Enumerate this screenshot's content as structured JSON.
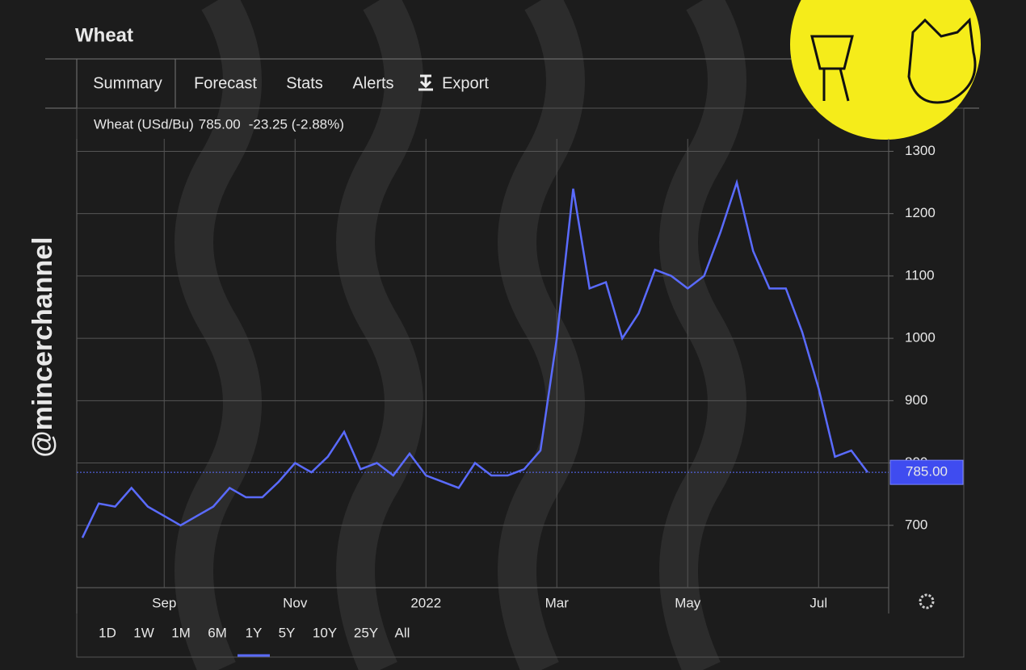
{
  "header": {
    "title": "Wheat",
    "tabs": [
      "Summary",
      "Forecast",
      "Stats",
      "Alerts",
      "Export"
    ],
    "change": "-23.25 (-2.88%)",
    "ranges": [
      "1D",
      "1W",
      "1M",
      "6M",
      "1Y",
      "5Y",
      "10Y",
      "25Y",
      "All"
    ],
    "selected_range": "1Y"
  },
  "watermark": "@mincerchannel",
  "chart_data": {
    "type": "line",
    "categories": [
      null,
      null,
      null,
      null,
      null,
      "Sep",
      null,
      null,
      null,
      null,
      null,
      null,
      null,
      "Nov",
      null,
      null,
      null,
      null,
      null,
      null,
      null,
      "2022",
      null,
      null,
      null,
      null,
      null,
      null,
      null,
      "Mar",
      null,
      null,
      null,
      null,
      null,
      null,
      null,
      "May",
      null,
      null,
      null,
      null,
      null,
      null,
      null,
      "Jul",
      null,
      null,
      null
    ],
    "series": [
      {
        "name": "Wheat (USd/Bu)",
        "color": "#5a6bff",
        "values": [
          680,
          735,
          730,
          760,
          730,
          715,
          700,
          715,
          730,
          760,
          745,
          745,
          770,
          800,
          785,
          810,
          850,
          790,
          800,
          780,
          815,
          780,
          770,
          760,
          800,
          780,
          780,
          790,
          820,
          1000,
          1240,
          1080,
          1090,
          1000,
          1040,
          1110,
          1100,
          1080,
          1100,
          1170,
          1250,
          1140,
          1080,
          1080,
          1010,
          920,
          810,
          820,
          785
        ]
      }
    ],
    "last_price": {
      "value": 785,
      "label": "785.00"
    },
    "ylim": [
      600,
      1320
    ],
    "yticks": [
      700,
      800,
      900,
      1000,
      1100,
      1200,
      1300
    ],
    "grid": true
  }
}
